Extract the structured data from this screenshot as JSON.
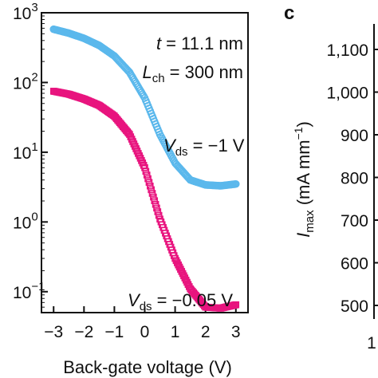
{
  "chart_data": [
    {
      "type": "scatter",
      "title": "",
      "xlabel": "Back-gate voltage (V)",
      "ylabel": "",
      "xlim": [
        -3.4,
        3.4
      ],
      "ylim_log10": [
        -1.3,
        3
      ],
      "yscale": "log",
      "x_tick_labels": [
        "−3",
        "−2",
        "−1",
        "0",
        "1",
        "2",
        "3"
      ],
      "x_tick_values": [
        -3,
        -2,
        -1,
        0,
        1,
        2,
        3
      ],
      "y_tick_values_log10": [
        3,
        2,
        1,
        0,
        -1
      ],
      "y_tick_bases": [
        "10",
        "10",
        "10",
        "10",
        "10"
      ],
      "y_tick_exponents": [
        "3",
        "2",
        "1",
        "0",
        "−1"
      ],
      "annotations": {
        "t_var": "t",
        "t_value": " = 11.1 nm",
        "l_var": "L",
        "l_sub": "ch",
        "l_value": " = 300 nm",
        "vds1_var": "V",
        "vds1_sub": "ds",
        "vds1_value": " = −1 V",
        "vds2_var": "V",
        "vds2_sub": "ds",
        "vds2_value": " = −0.05 V"
      },
      "series": [
        {
          "name": "Vds = −1 V",
          "color": "#5bb8ec",
          "marker": "circle",
          "points": [
            [
              -3.0,
              580
            ],
            [
              -2.5,
              510
            ],
            [
              -2.0,
              430
            ],
            [
              -1.5,
              340
            ],
            [
              -1.0,
              240
            ],
            [
              -0.5,
              140
            ],
            [
              0.0,
              60
            ],
            [
              0.5,
              18
            ],
            [
              1.0,
              7
            ],
            [
              1.5,
              4
            ],
            [
              2.0,
              3.4
            ],
            [
              2.5,
              3.3
            ],
            [
              3.0,
              3.5
            ]
          ]
        },
        {
          "name": "Vds = −0.05 V",
          "color": "#e8147e",
          "marker": "square",
          "points": [
            [
              -3.0,
              75
            ],
            [
              -2.5,
              68
            ],
            [
              -2.0,
              58
            ],
            [
              -1.5,
              47
            ],
            [
              -1.0,
              33
            ],
            [
              -0.5,
              18
            ],
            [
              0.0,
              6
            ],
            [
              0.5,
              1.1
            ],
            [
              1.0,
              0.3
            ],
            [
              1.5,
              0.11
            ],
            [
              2.0,
              0.06
            ],
            [
              2.5,
              0.058
            ],
            [
              3.0,
              0.065
            ]
          ]
        }
      ]
    },
    {
      "type": "scatter",
      "panel_label": "c",
      "ylabel_var": "I",
      "ylabel_sub": "max",
      "ylabel_unit_open": " (mA mm",
      "ylabel_unit_exp": "−1",
      "ylabel_unit_close": ")",
      "y_tick_labels": [
        "1,100",
        "1,000",
        "900",
        "800",
        "700",
        "600",
        "500"
      ],
      "x_tick_partial": "1",
      "series": []
    }
  ]
}
